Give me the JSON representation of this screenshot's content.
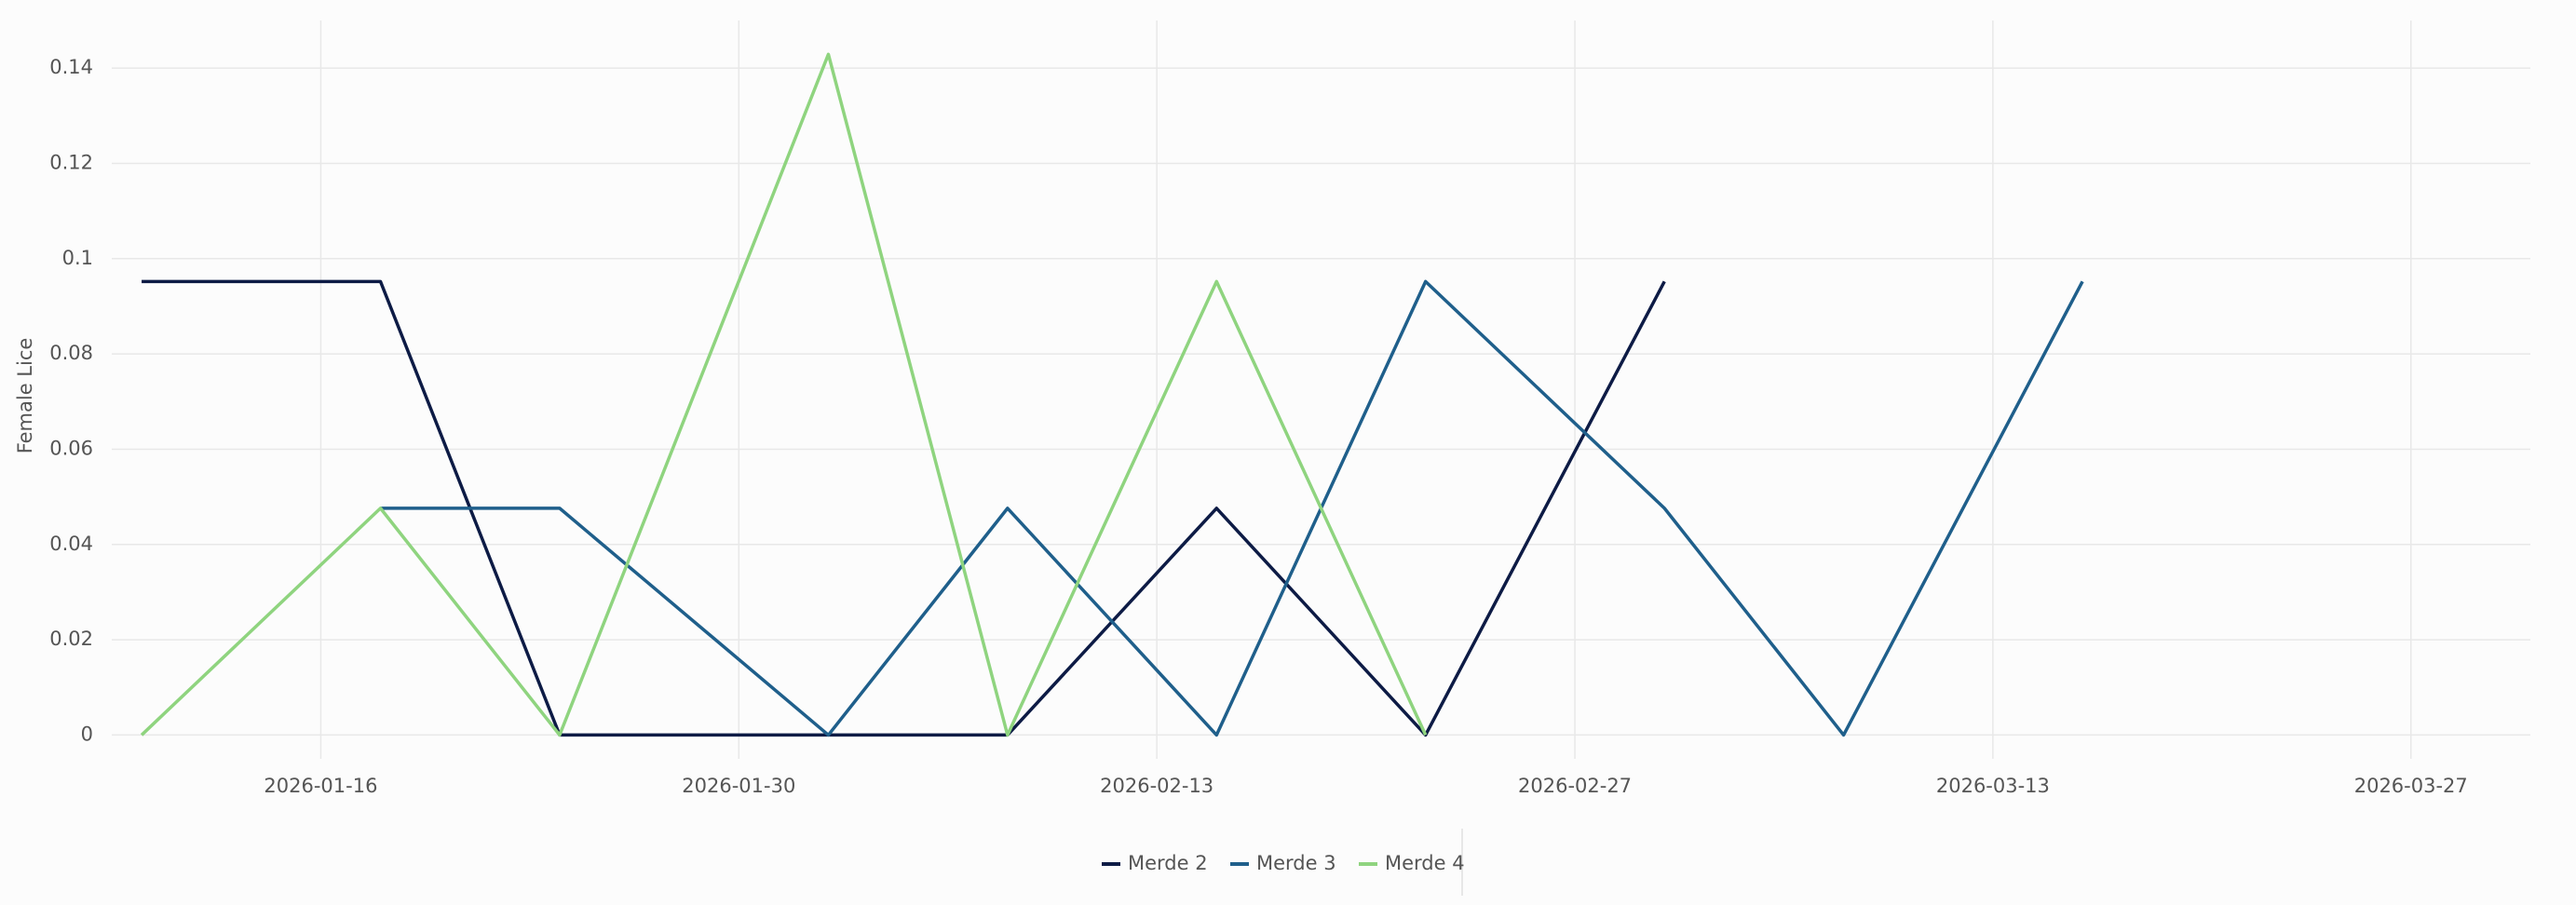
{
  "chart_data": {
    "type": "line",
    "y_label": "Female Lice",
    "x": [
      "2026-01-10",
      "2026-01-18",
      "2026-01-24",
      "2026-02-02",
      "2026-02-08",
      "2026-02-15",
      "2026-02-22",
      "2026-03-02",
      "2026-03-08",
      "2026-03-16"
    ],
    "series": [
      {
        "name": "Merde 2",
        "color": "#0d1b45",
        "values": [
          0.0952,
          0.0952,
          0,
          0,
          0,
          0.0476,
          0,
          0.0952,
          null,
          null
        ]
      },
      {
        "name": "Merde 3",
        "color": "#1f5f8b",
        "values": [
          null,
          0.0476,
          0.0476,
          0,
          0.0476,
          0,
          0.0952,
          0.0476,
          0,
          0.0952
        ]
      },
      {
        "name": "Merde 4",
        "color": "#8fd47f",
        "values": [
          0,
          0.0476,
          0,
          0.1429,
          0,
          0.0952,
          0,
          null,
          null,
          null
        ]
      }
    ],
    "xlim": [
      "2026-01-09",
      "2026-03-31"
    ],
    "xticks": [
      "2026-01-16",
      "2026-01-30",
      "2026-02-13",
      "2026-02-27",
      "2026-03-13",
      "2026-03-27"
    ],
    "ylim": [
      -0.005,
      0.15
    ],
    "yticks": [
      0,
      0.02,
      0.04,
      0.06,
      0.08,
      0.1,
      0.12,
      0.14
    ],
    "grid": true
  }
}
